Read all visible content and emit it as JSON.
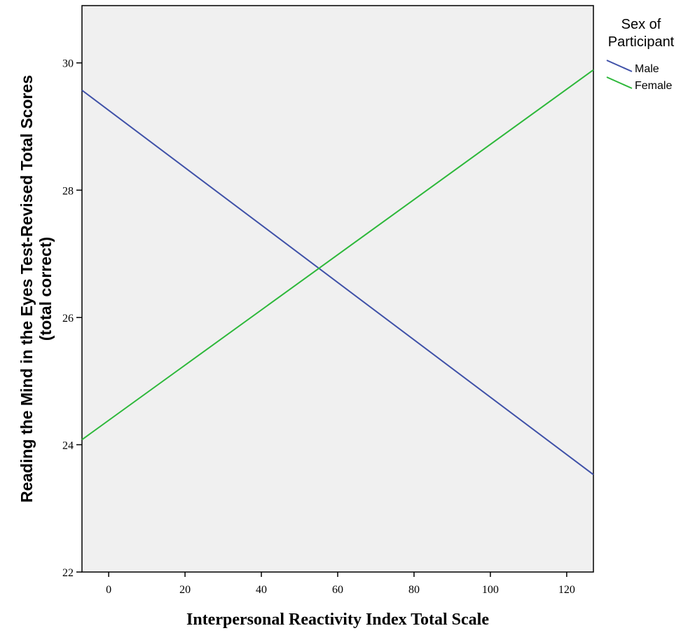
{
  "chart_data": {
    "type": "line",
    "xlabel": "Interpersonal Reactivity Index Total Scale",
    "ylabel_line1": "Reading the Mind in the Eyes Test-Revised Total Scores",
    "ylabel_line2": "(total correct)",
    "xlim": [
      -7,
      127
    ],
    "ylim": [
      22,
      30.9
    ],
    "x_ticks": [
      0,
      20,
      40,
      60,
      80,
      100,
      120
    ],
    "y_ticks": [
      22,
      24,
      26,
      28,
      30
    ],
    "legend": {
      "title_line1": "Sex of",
      "title_line2": "Participant",
      "placement": "right"
    },
    "series": [
      {
        "name": "Male",
        "color": "#3f51a8",
        "x": [
          -7,
          127
        ],
        "y": [
          29.57,
          23.53
        ]
      },
      {
        "name": "Female",
        "color": "#2db83a",
        "x": [
          -7,
          127
        ],
        "y": [
          24.08,
          29.89
        ]
      }
    ],
    "plot_background": "#f0f0f0",
    "grid": false
  }
}
